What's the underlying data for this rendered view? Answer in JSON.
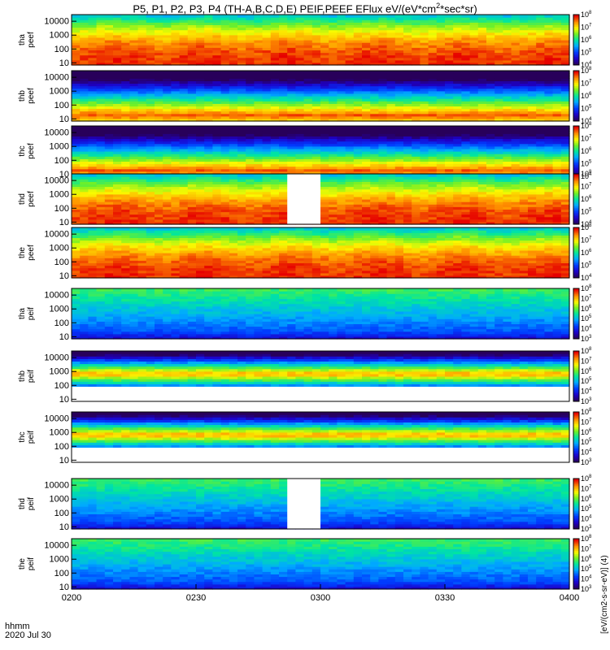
{
  "title": {
    "prefix": "P5, P1, P2, P3, P4 (TH-A,B,C,D,E) PEIF,PEEF EFlux eV/(eV*cm",
    "exp": "2",
    "suffix": "*sec*sr)"
  },
  "footer": {
    "time_label": "hhmm",
    "date_label": "2020 Jul 30"
  },
  "colorbar_unit_label": "[eV/(cm2-s-sr-eV)] (4)",
  "chart_data": {
    "type": "heatmap",
    "x_axis": {
      "range": [
        "0200",
        "0400"
      ],
      "ticks": [
        "0200",
        "0230",
        "0300",
        "0330",
        "0400"
      ],
      "label": "hhmm"
    },
    "panels": [
      {
        "label_line1": "tha",
        "label_line2": "peef",
        "species": "electron",
        "probe": "P5",
        "yticks": [
          "10",
          "100",
          "1000",
          "10000"
        ],
        "ylim_eV": [
          7,
          30000
        ],
        "log": true,
        "cbar_ticks": [
          "10^4",
          "10^5",
          "10^6",
          "10^7",
          "10^8"
        ],
        "cbar_range": [
          10000.0,
          100000000.0
        ],
        "pattern": "hot",
        "gap": null
      },
      {
        "label_line1": "thb",
        "label_line2": "peef",
        "species": "electron",
        "probe": "P1",
        "yticks": [
          "10",
          "100",
          "1000",
          "10000"
        ],
        "ylim_eV": [
          7,
          30000
        ],
        "log": true,
        "cbar_ticks": [
          "10^4",
          "10^5",
          "10^6",
          "10^7",
          "10^8"
        ],
        "cbar_range": [
          10000.0,
          100000000.0
        ],
        "pattern": "band",
        "gap": null
      },
      {
        "label_line1": "thc",
        "label_line2": "peef",
        "species": "electron",
        "probe": "P2",
        "yticks": [
          "10",
          "100",
          "1000",
          "10000"
        ],
        "ylim_eV": [
          7,
          30000
        ],
        "log": true,
        "cbar_ticks": [
          "10^4",
          "10^5",
          "10^6",
          "10^7",
          "10^8"
        ],
        "cbar_range": [
          10000.0,
          100000000.0
        ],
        "pattern": "band",
        "gap": null
      },
      {
        "label_line1": "thd",
        "label_line2": "peef",
        "species": "electron",
        "probe": "P3",
        "yticks": [
          "10",
          "100",
          "1000",
          "10000"
        ],
        "ylim_eV": [
          7,
          30000
        ],
        "log": true,
        "cbar_ticks": [
          "10^4",
          "10^5",
          "10^6",
          "10^7",
          "10^8"
        ],
        "cbar_range": [
          10000.0,
          100000000.0
        ],
        "pattern": "hot",
        "gap": [
          "0252",
          "0300"
        ]
      },
      {
        "label_line1": "the",
        "label_line2": "peef",
        "species": "electron",
        "probe": "P4",
        "yticks": [
          "10",
          "100",
          "1000",
          "10000"
        ],
        "ylim_eV": [
          7,
          30000
        ],
        "log": true,
        "cbar_ticks": [
          "10^4",
          "10^5",
          "10^6",
          "10^7",
          "10^8"
        ],
        "cbar_range": [
          10000.0,
          100000000.0
        ],
        "pattern": "hot",
        "gap": null
      },
      {
        "label_line1": "tha",
        "label_line2": "peif",
        "species": "ion",
        "probe": "P5",
        "yticks": [
          "10",
          "100",
          "1000",
          "10000"
        ],
        "ylim_eV": [
          7,
          30000
        ],
        "log": true,
        "cbar_ticks": [
          "10^3",
          "10^4",
          "10^5",
          "10^6",
          "10^7",
          "10^8"
        ],
        "cbar_range": [
          1000.0,
          100000000.0
        ],
        "pattern": "ion",
        "gap": null
      },
      {
        "label_line1": "thb",
        "label_line2": "peif",
        "species": "ion",
        "probe": "P1",
        "yticks": [
          "10",
          "100",
          "1000",
          "10000"
        ],
        "ylim_eV": [
          7,
          30000
        ],
        "log": true,
        "cbar_ticks": [
          "10^3",
          "10^4",
          "10^5",
          "10^6",
          "10^7",
          "10^8"
        ],
        "cbar_range": [
          1000.0,
          100000000.0
        ],
        "pattern": "ionband",
        "gap": null
      },
      {
        "label_line1": "thc",
        "label_line2": "peif",
        "species": "ion",
        "probe": "P2",
        "yticks": [
          "10",
          "100",
          "1000",
          "10000"
        ],
        "ylim_eV": [
          7,
          30000
        ],
        "log": true,
        "cbar_ticks": [
          "10^3",
          "10^4",
          "10^5",
          "10^6",
          "10^7",
          "10^8"
        ],
        "cbar_range": [
          1000.0,
          100000000.0
        ],
        "pattern": "ionband",
        "gap": null
      },
      {
        "label_line1": "thd",
        "label_line2": "peif",
        "species": "ion",
        "probe": "P3",
        "yticks": [
          "10",
          "100",
          "1000",
          "10000"
        ],
        "ylim_eV": [
          7,
          30000
        ],
        "log": true,
        "cbar_ticks": [
          "10^3",
          "10^4",
          "10^5",
          "10^6",
          "10^7",
          "10^8"
        ],
        "cbar_range": [
          1000.0,
          100000000.0
        ],
        "pattern": "ion",
        "gap": [
          "0252",
          "0300"
        ]
      },
      {
        "label_line1": "the",
        "label_line2": "peif",
        "species": "ion",
        "probe": "P4",
        "yticks": [
          "10",
          "100",
          "1000",
          "10000"
        ],
        "ylim_eV": [
          7,
          30000
        ],
        "log": true,
        "cbar_ticks": [
          "10^3",
          "10^4",
          "10^5",
          "10^6",
          "10^7",
          "10^8"
        ],
        "cbar_range": [
          1000.0,
          100000000.0
        ],
        "pattern": "ion",
        "gap": null
      }
    ],
    "colormap": "rainbow (purple-blue-green-yellow-red)",
    "grid": false,
    "legend": "colorbars on right of each panel"
  }
}
